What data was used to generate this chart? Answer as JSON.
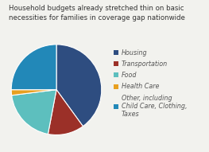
{
  "title": "Household budgets already stretched thin on basic\nnecessities for families in coverage gap nationwide",
  "title_fontsize": 6.2,
  "slices": [
    {
      "label": "Housing",
      "value": 40,
      "color": "#2E4D80"
    },
    {
      "label": "Transportation",
      "value": 13,
      "color": "#9B3028"
    },
    {
      "label": "Food",
      "value": 20,
      "color": "#5DBFBE"
    },
    {
      "label": "Health Care",
      "value": 2,
      "color": "#E8A020"
    },
    {
      "label": "Other, including\nChild Care, Clothing,\nTaxes",
      "value": 25,
      "color": "#2288B8"
    }
  ],
  "startangle": 90,
  "background_color": "#f2f2ee",
  "legend_fontsize": 5.8
}
